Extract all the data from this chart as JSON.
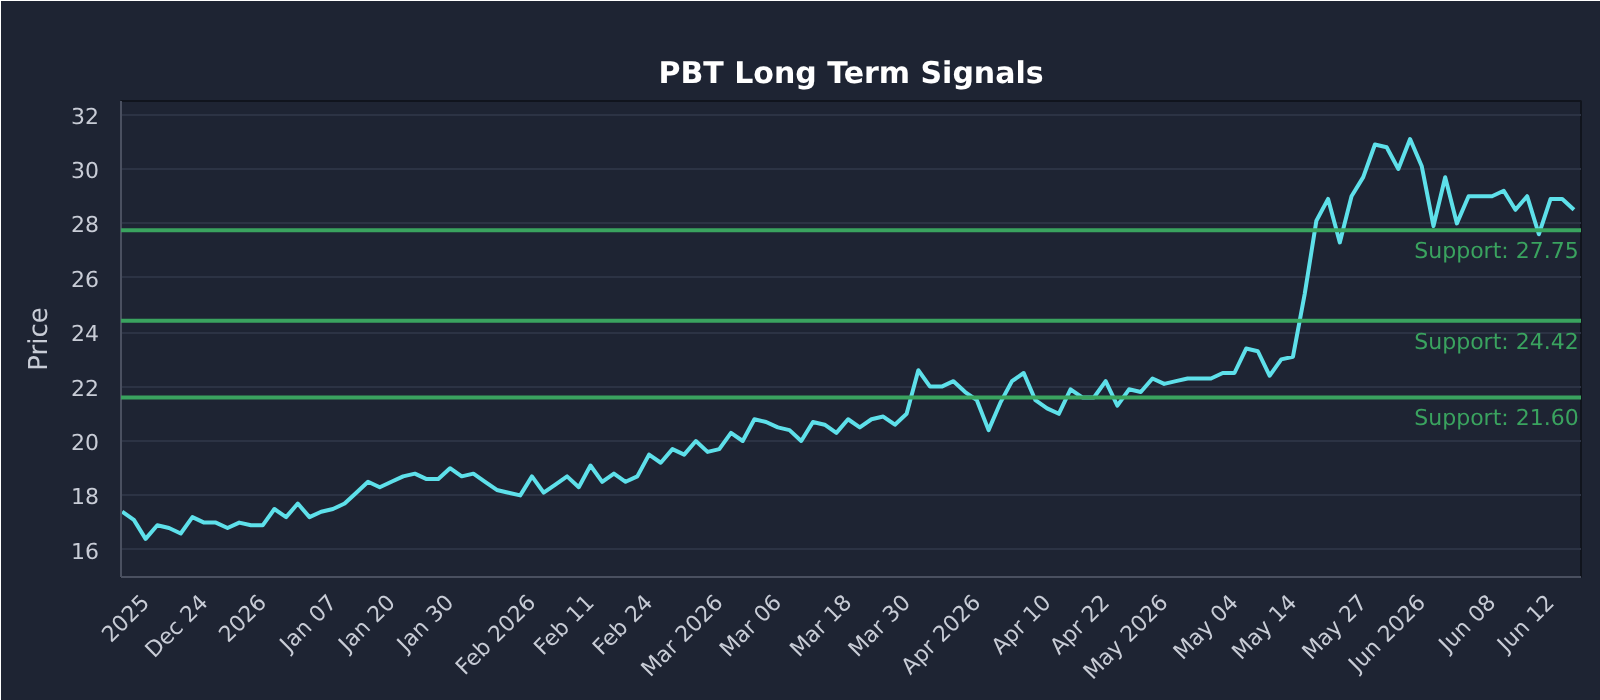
{
  "chart_data": {
    "type": "line",
    "title": "PBT Long Term Signals",
    "ylabel": "Price",
    "categories": [
      null,
      null,
      "2025",
      null,
      null,
      null,
      null,
      "Dec 24",
      null,
      null,
      null,
      null,
      "2026",
      null,
      null,
      null,
      null,
      null,
      "Jan 07",
      null,
      null,
      null,
      null,
      "Jan 20",
      null,
      null,
      null,
      null,
      "Jan 30",
      null,
      null,
      null,
      null,
      null,
      null,
      "Feb 2026",
      null,
      null,
      null,
      null,
      "Feb 11",
      null,
      null,
      null,
      null,
      "Feb 24",
      null,
      null,
      null,
      null,
      null,
      "Mar 2026",
      null,
      null,
      null,
      null,
      "Mar 06",
      null,
      null,
      null,
      null,
      null,
      "Mar 18",
      null,
      null,
      null,
      null,
      "Mar 30",
      null,
      null,
      null,
      null,
      null,
      "Apr 2026",
      null,
      null,
      null,
      null,
      null,
      "Apr 10",
      null,
      null,
      null,
      null,
      "Apr 22",
      null,
      null,
      null,
      null,
      "May 2026",
      null,
      null,
      null,
      null,
      null,
      "May 04",
      null,
      null,
      null,
      null,
      "May 14",
      null,
      null,
      null,
      null,
      null,
      "May 27",
      null,
      null,
      null,
      null,
      "Jun 2026",
      null,
      null,
      null,
      null,
      null,
      "Jun 08",
      null,
      null,
      null,
      null,
      "Jun 12",
      null,
      null
    ],
    "series": [
      {
        "color": "#5ee0ea",
        "values": [
          17.4,
          17.1,
          16.4,
          16.9,
          16.8,
          16.6,
          17.2,
          17.0,
          17.0,
          16.8,
          17.0,
          16.9,
          16.9,
          17.5,
          17.2,
          17.7,
          17.2,
          17.4,
          17.5,
          17.7,
          18.1,
          18.5,
          18.3,
          18.5,
          18.7,
          18.8,
          18.6,
          18.6,
          19.0,
          18.7,
          18.8,
          18.5,
          18.2,
          18.1,
          18.0,
          18.7,
          18.1,
          18.4,
          18.7,
          18.3,
          19.1,
          18.5,
          18.8,
          18.5,
          18.7,
          19.5,
          19.2,
          19.7,
          19.5,
          20.0,
          19.6,
          19.7,
          20.3,
          20.0,
          20.8,
          20.7,
          20.5,
          20.4,
          20.0,
          20.7,
          20.6,
          20.3,
          20.8,
          20.5,
          20.8,
          20.9,
          20.6,
          21.0,
          22.6,
          22.0,
          22.0,
          22.2,
          21.8,
          21.5,
          20.4,
          21.4,
          22.2,
          22.5,
          21.5,
          21.2,
          21.0,
          21.9,
          21.6,
          21.6,
          22.2,
          21.3,
          21.9,
          21.8,
          22.3,
          22.1,
          22.2,
          22.3,
          22.3,
          22.3,
          22.5,
          22.5,
          23.4,
          23.3,
          22.4,
          23.0,
          23.1,
          25.4,
          28.1,
          28.9,
          27.3,
          29.0,
          29.7,
          30.9,
          30.8,
          30.0,
          31.1,
          30.1,
          27.9,
          29.7,
          28.0,
          29.0,
          29.0,
          29.0,
          29.2,
          28.5,
          29.0,
          27.6,
          28.9,
          28.9,
          28.5
        ]
      }
    ],
    "ylim": [
      15,
      32.5
    ],
    "yticks": [
      16,
      18,
      20,
      22,
      24,
      26,
      28,
      30,
      32
    ],
    "grid": "y",
    "ref_lines": [
      {
        "axis": "y",
        "value": 27.75,
        "label": "Support: 27.75",
        "color": "#3aa35f"
      },
      {
        "axis": "y",
        "value": 24.42,
        "label": "Support: 24.42",
        "color": "#3aa35f"
      },
      {
        "axis": "y",
        "value": 21.6,
        "label": "Support: 21.60",
        "color": "#3aa35f"
      }
    ]
  }
}
